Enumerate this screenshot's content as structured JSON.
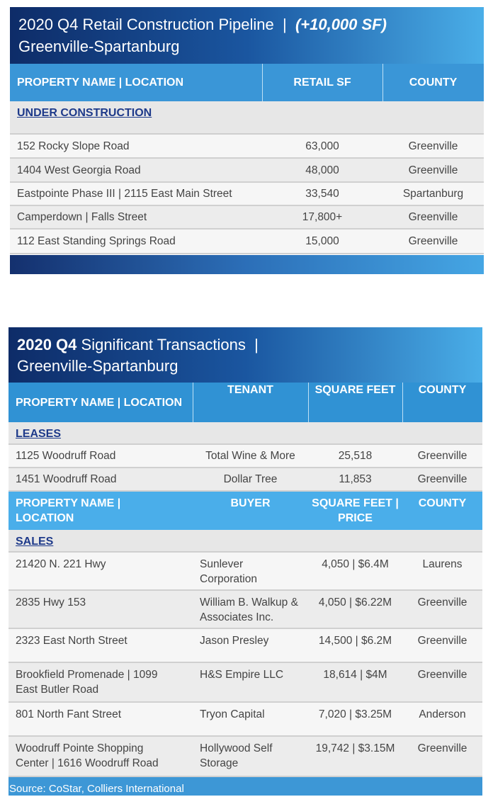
{
  "tables": [
    {
      "title": "2020 Q4 Retail Construction Pipeline  |  ",
      "title_highlight": "(+10,000 SF)",
      "subtitle": "Greenville-Spartanburg",
      "header": [
        "PROPERTY NAME | LOCATION",
        "RETAIL SF",
        "COUNTY"
      ],
      "section": "UNDER CONSTRUCTION",
      "rows": [
        [
          "152 Rocky Slope Road",
          "63,000",
          "Greenville"
        ],
        [
          "1404 West Georgia Road",
          "48,000",
          "Greenville"
        ],
        [
          "Eastpointe Phase III | 2115 East Main Street",
          "33,540",
          "Spartanburg"
        ],
        [
          "Camperdown | Falls Street",
          "17,800+",
          "Greenville"
        ],
        [
          "112 East Standing Springs Road",
          "15,000",
          "Greenville"
        ]
      ]
    },
    {
      "title_bold": "2020 Q4",
      "title": " Significant Transactions  |",
      "subtitle": "Greenville-Spartanburg",
      "leases": {
        "header": [
          "PROPERTY NAME | LOCATION",
          "TENANT",
          "SQUARE FEET",
          "COUNTY"
        ],
        "section": "LEASES",
        "rows": [
          [
            "1125 Woodruff Road",
            "Total Wine & More",
            "25,518",
            "Greenville"
          ],
          [
            "1451 Woodruff Road",
            "Dollar Tree",
            "11,853",
            "Greenville"
          ]
        ]
      },
      "sales": {
        "header": [
          "PROPERTY NAME | LOCATION",
          "BUYER",
          "SQUARE FEET | PRICE",
          "COUNTY"
        ],
        "section": "SALES",
        "rows": [
          [
            "21420 N. 221 Hwy",
            "Sunlever Corporation",
            "4,050 | $6.4M",
            "Laurens"
          ],
          [
            "2835 Hwy 153",
            "William B. Walkup & Associates Inc.",
            "4,050 | $6.22M",
            "Greenville"
          ],
          [
            "2323 East North Street",
            "Jason Presley",
            "14,500 | $6.2M",
            "Greenville"
          ],
          [
            "Brookfield Promenade | 1099 East Butler Road",
            "H&S Empire LLC",
            "18,614 | $4M",
            "Greenville"
          ],
          [
            "801 North Fant Street",
            "Tryon Capital",
            "7,020 | $3.25M",
            "Anderson"
          ],
          [
            "Woodruff Pointe Shopping Center | 1616 Woodruff Road",
            "Hollywood Self Storage",
            "19,742 | $3.15M",
            "Greenville"
          ]
        ]
      }
    }
  ],
  "source": "Source: CoStar, Colliers International"
}
